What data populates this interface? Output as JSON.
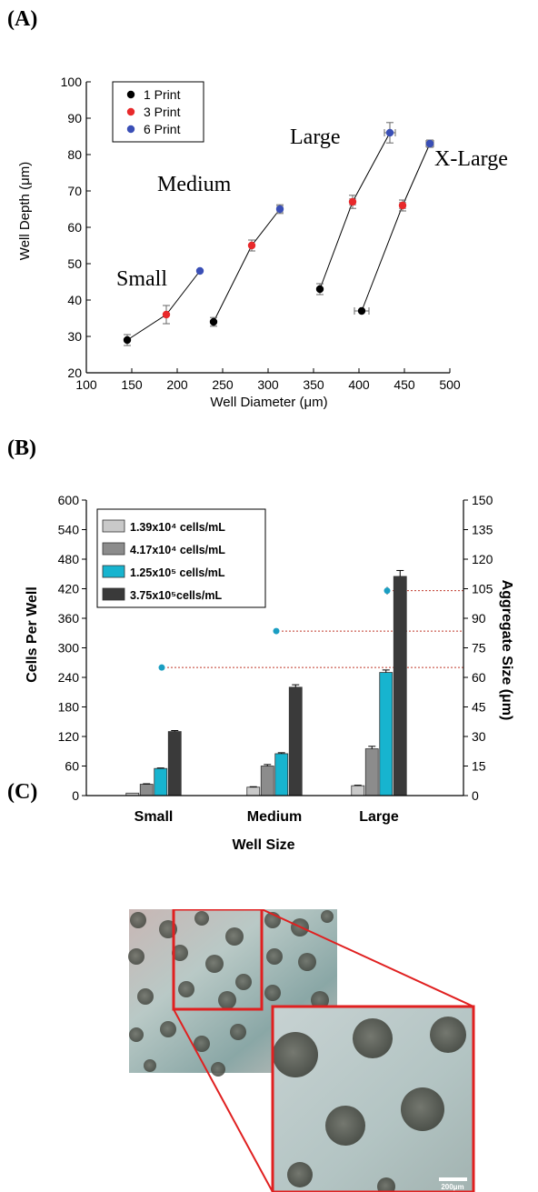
{
  "panels": {
    "a": "(A)",
    "b": "(B)",
    "c": "(C)"
  },
  "chart_data": [
    {
      "type": "scatter",
      "xlabel": "Well Diameter (μm)",
      "ylabel": "Well Depth (μm)",
      "xlim": [
        100,
        500
      ],
      "ylim": [
        20,
        100
      ],
      "xticks": [
        100,
        150,
        200,
        250,
        300,
        350,
        400,
        450,
        500
      ],
      "yticks": [
        20,
        30,
        40,
        50,
        60,
        70,
        80,
        90,
        100
      ],
      "grid": false,
      "legend_position": "top-left",
      "series_colors": [
        "#000000",
        "#e8292b",
        "#3a4fb6"
      ],
      "legend": [
        "1 Print",
        "3 Print",
        "6 Print"
      ],
      "groups": [
        {
          "name": "Small",
          "points": [
            {
              "x": 145,
              "y": 29,
              "yerr": 1.5,
              "xerr": 0,
              "print": 0
            },
            {
              "x": 188,
              "y": 36,
              "yerr": 2.5,
              "xerr": 0,
              "print": 1
            },
            {
              "x": 225,
              "y": 48,
              "yerr": 0,
              "xerr": 0,
              "print": 2
            }
          ]
        },
        {
          "name": "Medium",
          "points": [
            {
              "x": 240,
              "y": 34,
              "yerr": 1.2,
              "xerr": 0,
              "print": 0
            },
            {
              "x": 282,
              "y": 55,
              "yerr": 1.5,
              "xerr": 0,
              "print": 1
            },
            {
              "x": 313,
              "y": 65,
              "yerr": 1.2,
              "xerr": 3,
              "print": 2
            }
          ]
        },
        {
          "name": "Large",
          "points": [
            {
              "x": 357,
              "y": 43,
              "yerr": 1.5,
              "xerr": 0,
              "print": 0
            },
            {
              "x": 393,
              "y": 67,
              "yerr": 1.8,
              "xerr": 3,
              "print": 1
            },
            {
              "x": 434,
              "y": 86,
              "yerr": 2.8,
              "xerr": 6,
              "print": 2
            }
          ]
        },
        {
          "name": "X-Large",
          "points": [
            {
              "x": 403,
              "y": 37,
              "yerr": 0,
              "xerr": 8,
              "print": 0
            },
            {
              "x": 448,
              "y": 66,
              "yerr": 1.5,
              "xerr": 3,
              "print": 1
            },
            {
              "x": 478,
              "y": 83,
              "yerr": 1,
              "xerr": 4,
              "print": 2
            }
          ]
        }
      ]
    },
    {
      "type": "bar",
      "xlabel": "Well Size",
      "ylabel": "Cells Per Well",
      "y2label": "Aggregate Size (μm)",
      "categories": [
        "Small",
        "Medium",
        "Large"
      ],
      "ylim": [
        0,
        600
      ],
      "y2lim": [
        0,
        150
      ],
      "yticks": [
        0,
        60,
        120,
        180,
        240,
        300,
        360,
        420,
        480,
        540,
        600
      ],
      "y2ticks": [
        0,
        15,
        30,
        45,
        60,
        75,
        90,
        105,
        120,
        135,
        150
      ],
      "legend_position": "top-left",
      "grid": false,
      "series": [
        {
          "name": "1.39x10⁴ cells/mL",
          "color": "#c9c9c9",
          "values": [
            5,
            17,
            20
          ],
          "err": [
            0,
            1,
            1
          ]
        },
        {
          "name": "4.17x10⁴ cells/mL",
          "color": "#8c8c8c",
          "values": [
            23,
            60,
            95
          ],
          "err": [
            1,
            3,
            5
          ]
        },
        {
          "name": "1.25x10⁵ cells/mL",
          "color": "#17b4cf",
          "values": [
            55,
            85,
            250
          ],
          "err": [
            1,
            2,
            5
          ]
        },
        {
          "name": "3.75x10⁵cells/mL",
          "color": "#3a3a3a",
          "values": [
            130,
            220,
            445
          ],
          "err": [
            2,
            5,
            12
          ]
        }
      ],
      "aggregate_points": [
        {
          "category": "Small",
          "value": 65
        },
        {
          "category": "Medium",
          "value": 83.5
        },
        {
          "category": "Large",
          "value": 104,
          "err": 2
        }
      ],
      "aggregate_color": "#1a9ec2",
      "reference_line_color": "#c0392b"
    }
  ],
  "micrograph": {
    "scale_bar": "200μm",
    "highlight_color": "#e02020"
  }
}
